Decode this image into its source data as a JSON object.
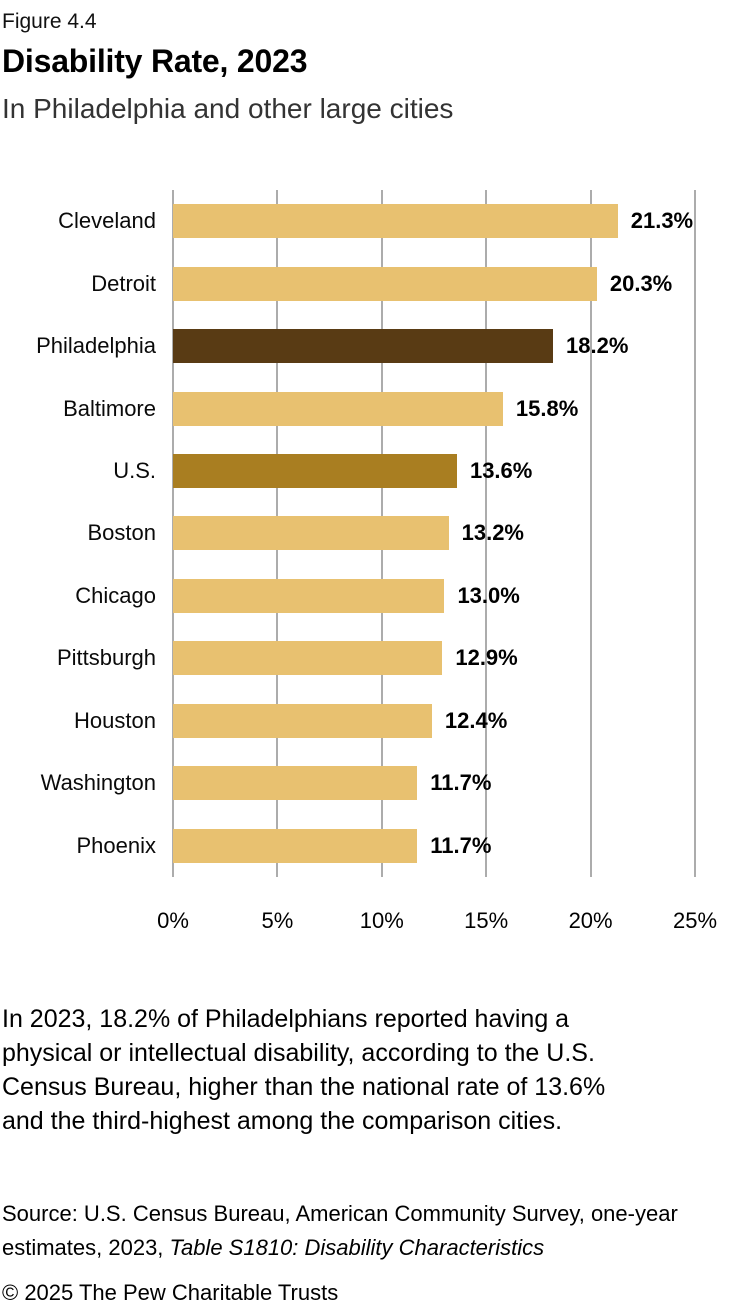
{
  "header": {
    "figure_label": "Figure 4.4"
  },
  "chart_data": {
    "type": "bar",
    "orientation": "horizontal",
    "title": "Disability Rate, 2023",
    "subtitle": "In Philadelphia and other large cities",
    "categories": [
      "Cleveland",
      "Detroit",
      "Philadelphia",
      "Baltimore",
      "U.S.",
      "Boston",
      "Chicago",
      "Pittsburgh",
      "Houston",
      "Washington",
      "Phoenix"
    ],
    "values": [
      21.3,
      20.3,
      18.2,
      15.8,
      13.6,
      13.2,
      13.0,
      12.9,
      12.4,
      11.7,
      11.7
    ],
    "value_labels": [
      "21.3%",
      "20.3%",
      "18.2%",
      "15.8%",
      "13.6%",
      "13.2%",
      "13.0%",
      "12.9%",
      "12.4%",
      "11.7%",
      "11.7%"
    ],
    "bar_colors": [
      "#E8C170",
      "#E8C170",
      "#593B14",
      "#E8C170",
      "#A97E21",
      "#E8C170",
      "#E8C170",
      "#E8C170",
      "#E8C170",
      "#E8C170",
      "#E8C170"
    ],
    "colors": {
      "default_bar": "#E8C170",
      "philadelphia_highlight": "#593B14",
      "us_highlight": "#A97E21",
      "gridline": "#ACACAC"
    },
    "xlabel": "",
    "ylabel": "",
    "xlim": [
      0,
      25
    ],
    "x_tick_values": [
      0,
      5,
      10,
      15,
      20,
      25
    ],
    "x_tick_labels": [
      "0%",
      "5%",
      "10%",
      "15%",
      "20%",
      "25%"
    ],
    "grid": true,
    "legend": "none"
  },
  "body_text": {
    "lines": [
      "In 2023, 18.2% of Philadelphians reported having a",
      "physical or intellectual disability, according to the U.S.",
      "Census Bureau, higher than the national rate of 13.6%",
      "and the third-highest among the comparison cities."
    ]
  },
  "source": {
    "line1": "Source: U.S. Census Bureau, American Community Survey, one-year",
    "line2_regular": "estimates, 2023, ",
    "line2_italic": "Table S1810: Disability Characteristics"
  },
  "copyright": "© 2025 The Pew Charitable Trusts"
}
